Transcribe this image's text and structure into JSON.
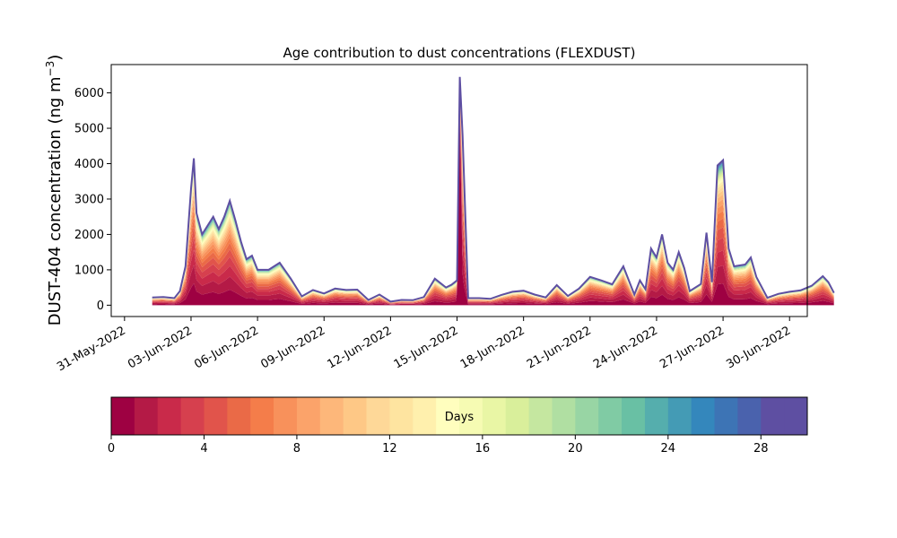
{
  "chart_data": {
    "type": "area",
    "title": "Age contribution to dust concentrations (FLEXDUST)",
    "ylabel": "DUST-404 concentration (ng m",
    "ylabel_unit_sup": "−3",
    "ylabel_close": ")",
    "xlabel": "",
    "ylim": [
      -320,
      6800
    ],
    "yticks": [
      0,
      1000,
      2000,
      3000,
      4000,
      5000,
      6000
    ],
    "xlim_days": [
      -0.6,
      30.8
    ],
    "x_tick_labels": [
      "31-May-2022",
      "03-Jun-2022",
      "06-Jun-2022",
      "09-Jun-2022",
      "12-Jun-2022",
      "15-Jun-2022",
      "18-Jun-2022",
      "21-Jun-2022",
      "24-Jun-2022",
      "27-Jun-2022",
      "30-Jun-2022"
    ],
    "stack_order": "age 0 (bottom) to age 30 days (top)",
    "total": {
      "x": [
        "2022-06-01 06:00",
        "2022-06-01 18:00",
        "2022-06-02 06:00",
        "2022-06-02 12:00",
        "2022-06-02 18:00",
        "2022-06-03 00:00",
        "2022-06-03 03:00",
        "2022-06-03 06:00",
        "2022-06-03 12:00",
        "2022-06-04 00:00",
        "2022-06-04 06:00",
        "2022-06-04 12:00",
        "2022-06-04 18:00",
        "2022-06-05 00:00",
        "2022-06-05 06:00",
        "2022-06-05 12:00",
        "2022-06-05 18:00",
        "2022-06-06 00:00",
        "2022-06-06 06:00",
        "2022-06-06 12:00",
        "2022-06-07 00:00",
        "2022-06-07 12:00",
        "2022-06-08 00:00",
        "2022-06-08 12:00",
        "2022-06-09 00:00",
        "2022-06-09 12:00",
        "2022-06-10 00:00",
        "2022-06-10 12:00",
        "2022-06-11 00:00",
        "2022-06-11 12:00",
        "2022-06-12 00:00",
        "2022-06-12 12:00",
        "2022-06-13 00:00",
        "2022-06-13 12:00",
        "2022-06-14 00:00",
        "2022-06-14 12:00",
        "2022-06-14 18:00",
        "2022-06-15 00:00",
        "2022-06-15 03:00",
        "2022-06-15 06:00",
        "2022-06-15 12:00",
        "2022-06-16 00:00",
        "2022-06-16 12:00",
        "2022-06-17 00:00",
        "2022-06-17 12:00",
        "2022-06-18 00:00",
        "2022-06-18 12:00",
        "2022-06-19 00:00",
        "2022-06-19 12:00",
        "2022-06-20 00:00",
        "2022-06-20 12:00",
        "2022-06-21 00:00",
        "2022-06-21 12:00",
        "2022-06-22 00:00",
        "2022-06-22 12:00",
        "2022-06-23 00:00",
        "2022-06-23 06:00",
        "2022-06-23 12:00",
        "2022-06-23 18:00",
        "2022-06-24 00:00",
        "2022-06-24 06:00",
        "2022-06-24 12:00",
        "2022-06-24 18:00",
        "2022-06-25 00:00",
        "2022-06-25 06:00",
        "2022-06-25 12:00",
        "2022-06-26 00:00",
        "2022-06-26 06:00",
        "2022-06-26 12:00",
        "2022-06-26 18:00",
        "2022-06-27 00:00",
        "2022-06-27 06:00",
        "2022-06-27 12:00",
        "2022-06-28 00:00",
        "2022-06-28 06:00",
        "2022-06-28 12:00",
        "2022-06-29 00:00",
        "2022-06-29 12:00",
        "2022-06-30 00:00",
        "2022-06-30 12:00",
        "2022-07-01 00:00",
        "2022-07-01 12:00",
        "2022-07-01 18:00",
        "2022-07-02 00:00"
      ],
      "values": [
        220,
        230,
        200,
        400,
        1100,
        3300,
        4150,
        2600,
        2000,
        2500,
        2150,
        2500,
        2950,
        2400,
        1800,
        1300,
        1400,
        1000,
        1000,
        1000,
        1200,
        750,
        250,
        430,
        330,
        470,
        430,
        440,
        150,
        300,
        100,
        150,
        140,
        230,
        750,
        500,
        580,
        700,
        6450,
        4800,
        200,
        200,
        180,
        290,
        380,
        410,
        300,
        220,
        570,
        260,
        470,
        800,
        700,
        590,
        1100,
        300,
        700,
        450,
        1600,
        1350,
        2000,
        1200,
        1000,
        1500,
        1050,
        400,
        600,
        2050,
        650,
        3950,
        4100,
        1600,
        1100,
        1150,
        1350,
        800,
        210,
        320,
        380,
        420,
        550,
        820,
        650,
        350
      ]
    },
    "bottom_age_peak": {
      "x": [
        "2022-06-15 00:00",
        "2022-06-15 03:00",
        "2022-06-15 06:00"
      ],
      "values": [
        300,
        5200,
        200
      ]
    },
    "colorbar": {
      "label": "Days",
      "range": [
        0,
        30
      ],
      "ticks": [
        "0",
        "4",
        "8",
        "12",
        "16",
        "20",
        "24",
        "28"
      ],
      "colors": [
        "#9e0142",
        "#b41a46",
        "#c92a4a",
        "#d6404e",
        "#e1544b",
        "#ea6a47",
        "#f47d4a",
        "#f8915b",
        "#fba36a",
        "#fdb77a",
        "#fec886",
        "#fed898",
        "#fee4a0",
        "#fff0ad",
        "#fffebe",
        "#f6fbb3",
        "#e9f6a5",
        "#d9ef9b",
        "#c5e7a0",
        "#b0dfa2",
        "#98d5a4",
        "#80cba4",
        "#69c0a4",
        "#55aead",
        "#449bb5",
        "#3487bc",
        "#3d74b5",
        "#4a62ad",
        "#5e4fa2",
        "#5e4fa2"
      ]
    }
  }
}
